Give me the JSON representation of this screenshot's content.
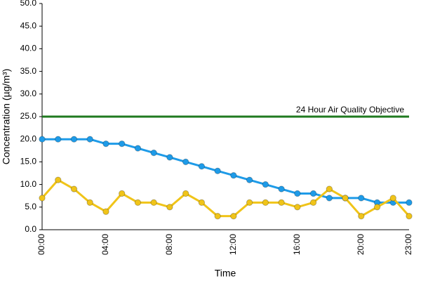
{
  "chart_data": {
    "type": "line",
    "y_label": "Concentration (µg/m³)",
    "x_label": "Time",
    "categories": [
      "00:00",
      null,
      null,
      null,
      "04:00",
      null,
      null,
      null,
      "08:00",
      null,
      null,
      null,
      "12:00",
      null,
      null,
      null,
      "16:00",
      null,
      null,
      null,
      "20:00",
      null,
      null,
      "23:00"
    ],
    "series": [
      {
        "color": "#1e9be8",
        "values": [
          20,
          20,
          20,
          20,
          19,
          19,
          18,
          17,
          16,
          15,
          14,
          13,
          12,
          11,
          10,
          9,
          8,
          8,
          7,
          7,
          7,
          6,
          6,
          6
        ]
      },
      {
        "color": "#f0c419",
        "values": [
          7,
          11,
          9,
          6,
          4,
          8,
          6,
          6,
          5,
          8,
          6,
          3,
          3,
          6,
          6,
          6,
          5,
          6,
          9,
          7,
          3,
          5,
          7,
          3
        ]
      }
    ],
    "reference_line": {
      "value": 25,
      "label": "24 Hour Air Quality Objective",
      "color": "#1f7a1f"
    },
    "ylim": [
      0,
      50
    ],
    "yticks": [
      {
        "value": 0,
        "label": "0.0"
      },
      {
        "value": 5,
        "label": "5.0"
      },
      {
        "value": 10,
        "label": "10.0"
      },
      {
        "value": 15,
        "label": "15.0"
      },
      {
        "value": 20,
        "label": "20.0"
      },
      {
        "value": 25,
        "label": "25.0"
      },
      {
        "value": 30,
        "label": "30.0"
      },
      {
        "value": 35,
        "label": "35.0"
      },
      {
        "value": 40,
        "label": "40.0"
      },
      {
        "value": 45,
        "label": "45.0"
      },
      {
        "value": 50,
        "label": "50.0"
      }
    ],
    "grid": false
  }
}
